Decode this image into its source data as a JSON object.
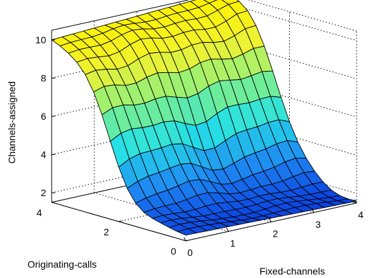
{
  "chart_data": {
    "type": "surface",
    "title": "",
    "xlabel": "Fixed-channels",
    "ylabel": "Originating-calls",
    "zlabel": "Channels-assigned",
    "xlim": [
      0,
      4
    ],
    "ylim": [
      0,
      4
    ],
    "zlim": [
      1.5,
      10.5
    ],
    "xticks": [
      "0",
      "1",
      "2",
      "3",
      "4"
    ],
    "yticks": [
      "0",
      "2",
      "4"
    ],
    "zticks": [
      "2",
      "4",
      "6",
      "8",
      "10"
    ],
    "grid": true,
    "colormap": [
      "#0a3de0",
      "#1f8cf2",
      "#25e0e6",
      "#7ef089",
      "#eef233",
      "#fff200"
    ],
    "mesh_size": 17,
    "x": [
      0,
      0.25,
      0.5,
      0.75,
      1,
      1.25,
      1.5,
      1.75,
      2,
      2.25,
      2.5,
      2.75,
      3,
      3.25,
      3.5,
      3.75,
      4
    ],
    "y": [
      0,
      0.25,
      0.5,
      0.75,
      1,
      1.25,
      1.5,
      1.75,
      2,
      2.25,
      2.5,
      2.75,
      3,
      3.25,
      3.5,
      3.75,
      4
    ],
    "z_at_corners": {
      "x0_y0": 1.8,
      "x4_y0": 1.6,
      "x0_y4": 10.0,
      "x4_y4": 10.5
    }
  }
}
